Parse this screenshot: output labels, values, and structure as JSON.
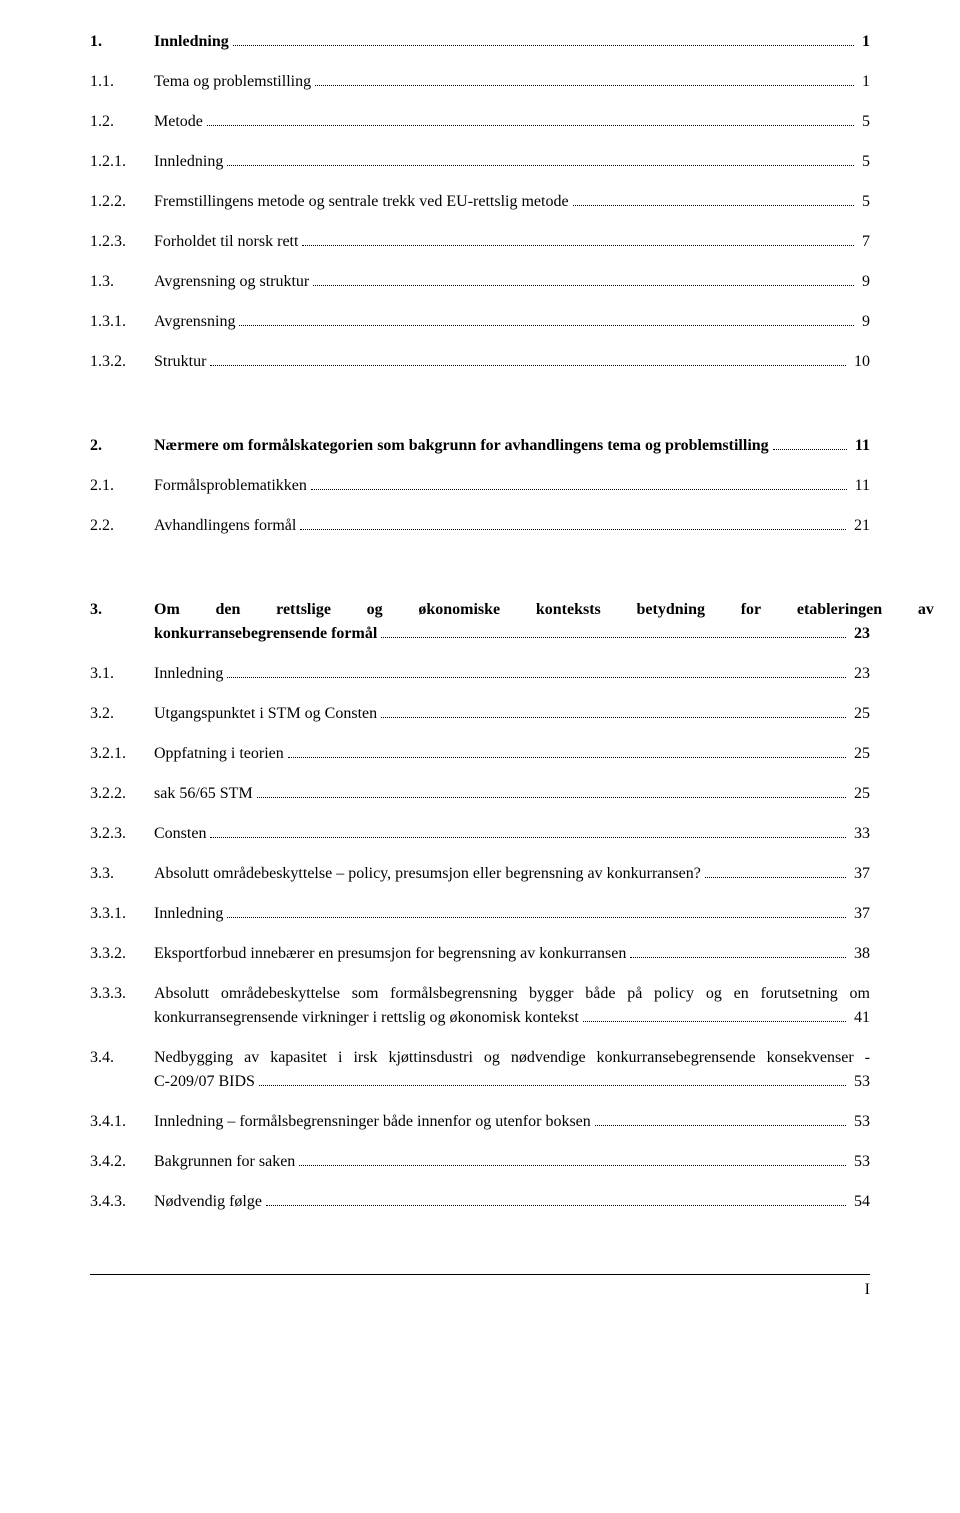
{
  "toc": [
    {
      "num": "1.",
      "title": "Innledning",
      "page": "1",
      "bold": true,
      "gap_before": 0
    },
    {
      "num": "1.1.",
      "title": "Tema og problemstilling",
      "page": "1",
      "bold": false,
      "gap_before": 0
    },
    {
      "num": "1.2.",
      "title": "Metode",
      "page": "5",
      "bold": false,
      "gap_before": 0
    },
    {
      "num": "1.2.1.",
      "title": "Innledning",
      "page": "5",
      "bold": false,
      "gap_before": 0
    },
    {
      "num": "1.2.2.",
      "title": "Fremstillingens metode og sentrale trekk ved EU-rettslig metode",
      "page": "5",
      "bold": false,
      "gap_before": 0
    },
    {
      "num": "1.2.3.",
      "title": "Forholdet til norsk rett",
      "page": "7",
      "bold": false,
      "gap_before": 0
    },
    {
      "num": "1.3.",
      "title": "Avgrensning og struktur",
      "page": "9",
      "bold": false,
      "gap_before": 0
    },
    {
      "num": "1.3.1.",
      "title": "Avgrensning",
      "page": "9",
      "bold": false,
      "gap_before": 0
    },
    {
      "num": "1.3.2.",
      "title": "Struktur",
      "page": "10",
      "bold": false,
      "gap_before": 0
    },
    {
      "num": "2.",
      "title": "Nærmere om formålskategorien som bakgrunn for avhandlingens tema og problemstilling",
      "page": "11",
      "bold": true,
      "gap_before": 1
    },
    {
      "num": "2.1.",
      "title": "Formålsproblematikken",
      "page": "11",
      "bold": false,
      "gap_before": 0
    },
    {
      "num": "2.2.",
      "title": "Avhandlingens formål",
      "page": "21",
      "bold": false,
      "gap_before": 0
    },
    {
      "num": "3.",
      "title_parts": [
        "Om",
        "den",
        "rettslige",
        "og",
        "økonomiske",
        "konteksts",
        "betydning",
        "for",
        "etableringen",
        "av"
      ],
      "title2": "konkurransebegrensende formål",
      "page": "23",
      "bold": true,
      "gap_before": 1,
      "multiline": true
    },
    {
      "num": "3.1.",
      "title": "Innledning",
      "page": "23",
      "bold": false,
      "gap_before": 0
    },
    {
      "num": "3.2.",
      "title": "Utgangspunktet i STM og Consten",
      "page": "25",
      "bold": false,
      "gap_before": 0
    },
    {
      "num": "3.2.1.",
      "title": "Oppfatning i teorien",
      "page": "25",
      "bold": false,
      "gap_before": 0
    },
    {
      "num": "3.2.2.",
      "title": "sak 56/65 STM",
      "page": "25",
      "bold": false,
      "gap_before": 0
    },
    {
      "num": "3.2.3.",
      "title": "Consten",
      "page": "33",
      "bold": false,
      "gap_before": 0
    },
    {
      "num": "3.3.",
      "title": "Absolutt områdebeskyttelse – policy, presumsjon eller begrensning av konkurransen?",
      "page": "37",
      "bold": false,
      "gap_before": 0
    },
    {
      "num": "3.3.1.",
      "title": "Innledning",
      "page": "37",
      "bold": false,
      "gap_before": 0
    },
    {
      "num": "3.3.2.",
      "title": "Eksportforbud innebærer en presumsjon for begrensning av konkurransen",
      "page": "38",
      "bold": false,
      "gap_before": 0
    },
    {
      "num": "3.3.3.",
      "title1": "Absolutt områdebeskyttelse som formålsbegrensning bygger både på policy og en forutsetning om",
      "title2": "konkurransegrensende virkninger i rettslig og økonomisk kontekst",
      "page": "41",
      "bold": false,
      "gap_before": 0,
      "multiline": true,
      "justify1": true
    },
    {
      "num": "3.4.",
      "title1": "Nedbygging av kapasitet i irsk kjøttinsdustri og nødvendige konkurransebegrensende konsekvenser -",
      "title2": "C-209/07 BIDS",
      "page": "53",
      "bold": false,
      "gap_before": 0,
      "multiline": true,
      "justify1": true
    },
    {
      "num": "3.4.1.",
      "title": "Innledning – formålsbegrensninger både innenfor og utenfor boksen",
      "page": "53",
      "bold": false,
      "gap_before": 0
    },
    {
      "num": "3.4.2.",
      "title": "Bakgrunnen for saken",
      "page": "53",
      "bold": false,
      "gap_before": 0
    },
    {
      "num": "3.4.3.",
      "title": "Nødvendig følge",
      "page": "54",
      "bold": false,
      "gap_before": 0
    }
  ],
  "footer": {
    "page_number": "I"
  }
}
